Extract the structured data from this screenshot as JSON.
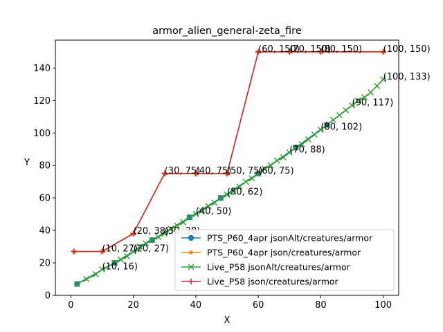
{
  "chart_data": {
    "type": "line",
    "title": "armor_alien_general-zeta_fire",
    "xlabel": "X",
    "ylabel": "Y",
    "xlim": [
      -4.95,
      104.95
    ],
    "ylim": [
      0,
      157.2
    ],
    "xticks": [
      0,
      20,
      40,
      60,
      80,
      100
    ],
    "yticks": [
      0,
      20,
      40,
      60,
      80,
      100,
      120,
      140
    ],
    "grid": false,
    "legend_position": "lower right",
    "series": [
      {
        "name": "PTS_P60_4apr jsonAlt/creatures/armor",
        "color": "#1f77b4",
        "marker": "circle",
        "x": [
          2,
          14,
          26,
          38,
          48,
          60,
          72,
          82
        ],
        "y": [
          7,
          20,
          34,
          48,
          60,
          75,
          91,
          105
        ]
      },
      {
        "name": "PTS_P60_4apr json/creatures/armor",
        "color": "#ff7f0e",
        "marker": "star",
        "x": [
          1,
          10,
          20,
          30,
          40,
          50,
          60,
          70,
          80,
          100
        ],
        "y": [
          27,
          27,
          38,
          75,
          75,
          75,
          150,
          150,
          150,
          150
        ]
      },
      {
        "name": "Live_P58 jsonAlt/creatures/armor",
        "color": "#2ca02c",
        "marker": "x",
        "x": [
          2,
          5,
          8,
          10,
          14,
          16,
          18,
          20,
          22,
          24,
          26,
          28,
          30,
          32,
          34,
          36,
          38,
          40,
          42,
          44,
          46,
          48,
          50,
          52,
          54,
          56,
          58,
          60,
          62,
          64,
          66,
          68,
          70,
          72,
          74,
          76,
          78,
          80,
          82,
          84,
          86,
          88,
          90,
          92,
          94,
          96,
          98,
          100
        ],
        "y": [
          7,
          10,
          13,
          16,
          20,
          22,
          24,
          27,
          30,
          32,
          34,
          36,
          38,
          41,
          43,
          45,
          48,
          50,
          52,
          55,
          57,
          60,
          62,
          64,
          67,
          70,
          72,
          75,
          78,
          80,
          83,
          85,
          88,
          91,
          93,
          96,
          99,
          102,
          105,
          108,
          111,
          114,
          117,
          120,
          122,
          125,
          129,
          133
        ]
      },
      {
        "name": "Live_P58 json/creatures/armor",
        "color": "#d62728",
        "marker": "plus",
        "x": [
          1,
          10,
          20,
          30,
          40,
          50,
          60,
          70,
          80,
          100
        ],
        "y": [
          27,
          27,
          38,
          75,
          75,
          75,
          150,
          150,
          150,
          150
        ]
      }
    ],
    "annotations": [
      {
        "text": "(10, 16)",
        "x": 10,
        "y": 16
      },
      {
        "text": "(10, 27)",
        "x": 10,
        "y": 27
      },
      {
        "text": "(20, 27)",
        "x": 20,
        "y": 27
      },
      {
        "text": "(20, 38)",
        "x": 20,
        "y": 38
      },
      {
        "text": "(30, 38)",
        "x": 30,
        "y": 38
      },
      {
        "text": "(30, 75)",
        "x": 30,
        "y": 75
      },
      {
        "text": "(40, 50)",
        "x": 40,
        "y": 50
      },
      {
        "text": "(40, 75)",
        "x": 40,
        "y": 75
      },
      {
        "text": "(50, 62)",
        "x": 50,
        "y": 62
      },
      {
        "text": "(50, 75)",
        "x": 50,
        "y": 75
      },
      {
        "text": "(60, 75)",
        "x": 60,
        "y": 75
      },
      {
        "text": "(60, 150)",
        "x": 60,
        "y": 150
      },
      {
        "text": "(70, 88)",
        "x": 70,
        "y": 88
      },
      {
        "text": "(70, 150)",
        "x": 70,
        "y": 150
      },
      {
        "text": "(80, 102)",
        "x": 80,
        "y": 102
      },
      {
        "text": "(80, 150)",
        "x": 80,
        "y": 150
      },
      {
        "text": "(90, 117)",
        "x": 90,
        "y": 117
      },
      {
        "text": "(100, 133)",
        "x": 100,
        "y": 133
      },
      {
        "text": "(100, 150)",
        "x": 100,
        "y": 150
      }
    ]
  }
}
